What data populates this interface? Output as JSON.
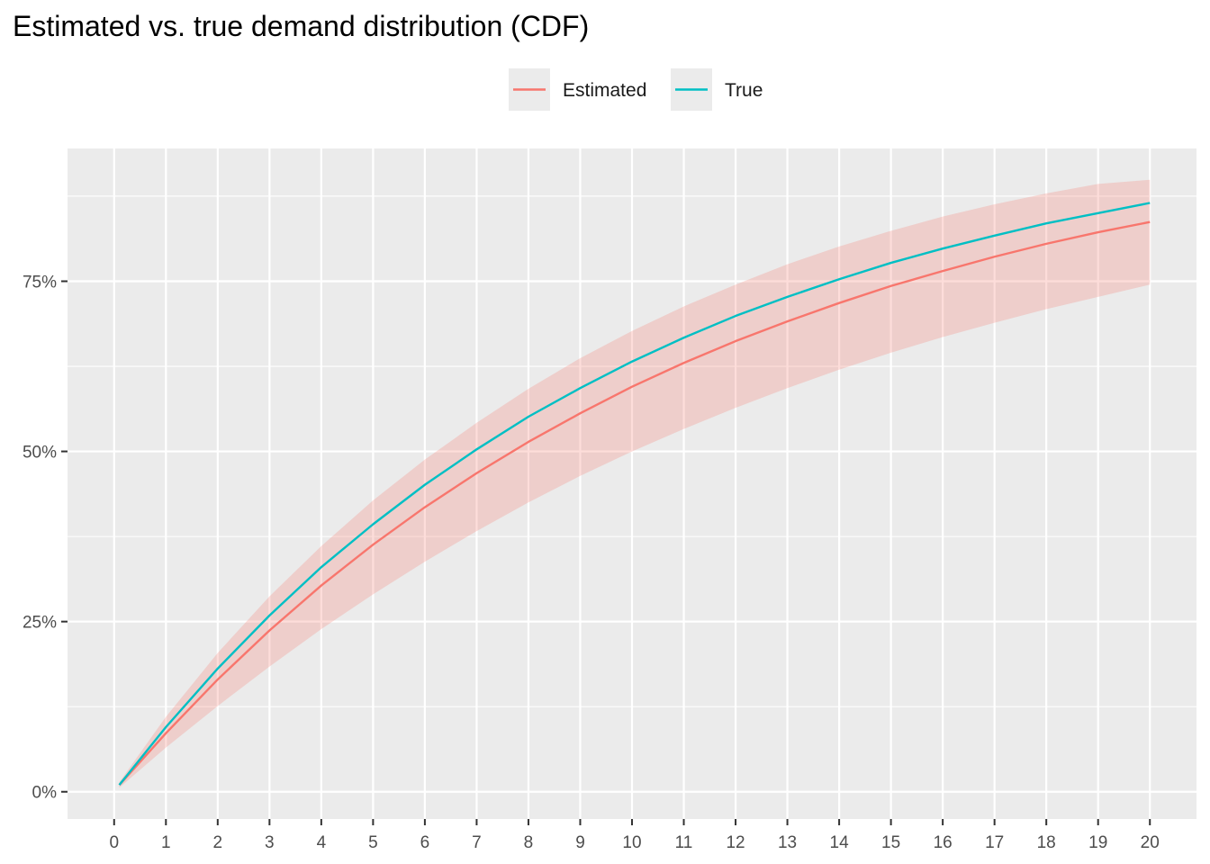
{
  "chart_data": {
    "type": "line",
    "title": "Estimated vs. true demand distribution (CDF)",
    "xlabel": "",
    "ylabel": "",
    "x_ticks": [
      "0",
      "1",
      "2",
      "3",
      "4",
      "5",
      "6",
      "7",
      "8",
      "9",
      "10",
      "11",
      "12",
      "13",
      "14",
      "15",
      "16",
      "17",
      "18",
      "19",
      "20"
    ],
    "y_ticks": [
      "0%",
      "25%",
      "50%",
      "75%"
    ],
    "y_tick_values": [
      0,
      0.25,
      0.5,
      0.75
    ],
    "xlim": [
      -0.9,
      20.9
    ],
    "ylim": [
      -0.04,
      0.945
    ],
    "grid": true,
    "legend_position": "top",
    "x": [
      0.1,
      1,
      2,
      3,
      4,
      5,
      6,
      7,
      8,
      9,
      10,
      11,
      12,
      13,
      14,
      15,
      16,
      17,
      18,
      19,
      20
    ],
    "series": [
      {
        "name": "Estimated",
        "color": "#F8766D",
        "values": [
          0.01,
          0.086,
          0.165,
          0.237,
          0.303,
          0.363,
          0.418,
          0.468,
          0.514,
          0.556,
          0.595,
          0.63,
          0.662,
          0.691,
          0.718,
          0.743,
          0.765,
          0.786,
          0.805,
          0.822,
          0.837
        ],
        "ribbon_lower": [
          0.006,
          0.065,
          0.126,
          0.184,
          0.239,
          0.29,
          0.338,
          0.383,
          0.425,
          0.464,
          0.5,
          0.533,
          0.564,
          0.593,
          0.62,
          0.645,
          0.668,
          0.689,
          0.709,
          0.727,
          0.745
        ],
        "ribbon_upper": [
          0.014,
          0.11,
          0.204,
          0.287,
          0.361,
          0.428,
          0.488,
          0.542,
          0.592,
          0.637,
          0.677,
          0.713,
          0.745,
          0.775,
          0.801,
          0.824,
          0.845,
          0.863,
          0.879,
          0.893,
          0.899
        ]
      },
      {
        "name": "True",
        "color": "#00BFC4",
        "values": [
          0.01,
          0.095,
          0.181,
          0.259,
          0.33,
          0.393,
          0.451,
          0.503,
          0.551,
          0.593,
          0.632,
          0.667,
          0.699,
          0.727,
          0.753,
          0.777,
          0.798,
          0.817,
          0.835,
          0.85,
          0.865
        ]
      }
    ]
  }
}
